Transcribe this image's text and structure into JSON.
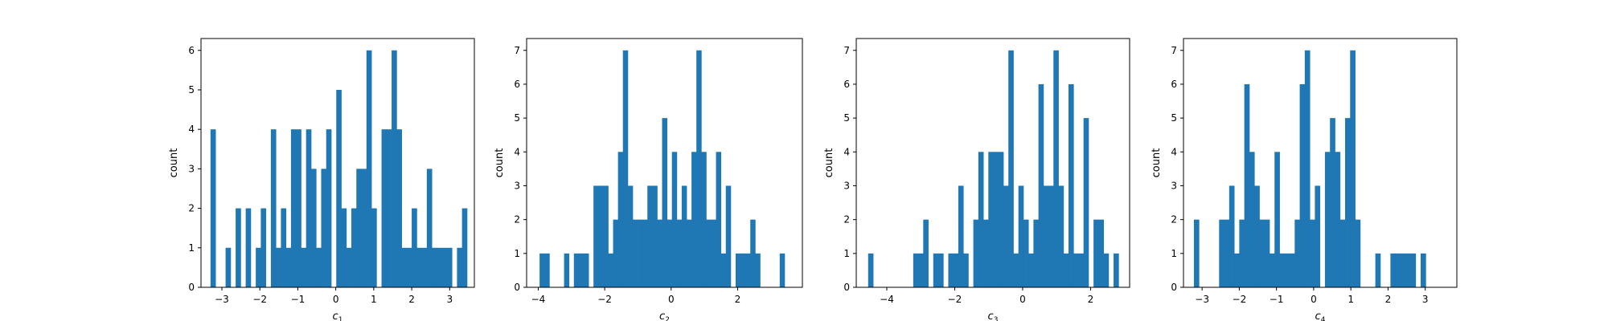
{
  "chart_data": [
    {
      "type": "bar",
      "xlabel": "c",
      "xlabel_sub": "1",
      "ylabel": "count",
      "xlim": [
        -3.55,
        3.65
      ],
      "ylim": [
        0,
        6.3
      ],
      "xticks": [
        -3,
        -2,
        -1,
        0,
        1,
        2,
        3
      ],
      "yticks": [
        0,
        1,
        2,
        3,
        4,
        5,
        6
      ],
      "xtick_labels": [
        "−3",
        "−2",
        "−1",
        "0",
        "1",
        "2",
        "3"
      ],
      "ytick_labels": [
        "0",
        "1",
        "2",
        "3",
        "4",
        "5",
        "6"
      ],
      "bin_start": -3.3,
      "bin_width": 0.1325,
      "values": [
        4,
        0,
        0,
        1,
        0,
        2,
        0,
        2,
        0,
        1,
        2,
        0,
        4,
        1,
        2,
        1,
        4,
        4,
        1,
        4,
        3,
        1,
        3,
        4,
        0,
        5,
        2,
        1,
        2,
        3,
        3,
        6,
        2,
        0,
        4,
        4,
        6,
        4,
        1,
        1,
        2,
        1,
        1,
        3,
        1,
        1,
        1,
        1,
        0,
        1,
        2
      ],
      "color": "#1f77b4"
    },
    {
      "type": "bar",
      "xlabel": "c",
      "xlabel_sub": "2",
      "ylabel": "count",
      "xlim": [
        -4.35,
        3.95
      ],
      "ylim": [
        0,
        7.35
      ],
      "xticks": [
        -4,
        -2,
        0,
        2
      ],
      "yticks": [
        0,
        1,
        2,
        3,
        4,
        5,
        6,
        7
      ],
      "xtick_labels": [
        "−4",
        "−2",
        "0",
        "2"
      ],
      "ytick_labels": [
        "0",
        "1",
        "2",
        "3",
        "4",
        "5",
        "6",
        "7"
      ],
      "bin_start": -3.96,
      "bin_width": 0.1475,
      "values": [
        1,
        1,
        0,
        0,
        0,
        1,
        0,
        1,
        1,
        1,
        0,
        3,
        3,
        3,
        1,
        2,
        4,
        7,
        3,
        2,
        2,
        2,
        3,
        3,
        2,
        5,
        2,
        4,
        2,
        3,
        2,
        4,
        7,
        4,
        2,
        2,
        4,
        1,
        3,
        0,
        1,
        1,
        1,
        2,
        1,
        0,
        0,
        0,
        0,
        1
      ],
      "color": "#1f77b4"
    },
    {
      "type": "bar",
      "xlabel": "c",
      "xlabel_sub": "3",
      "ylabel": "count",
      "xlim": [
        -4.9,
        3.15
      ],
      "ylim": [
        0,
        7.35
      ],
      "xticks": [
        -4,
        -2,
        0,
        2
      ],
      "yticks": [
        0,
        1,
        2,
        3,
        4,
        5,
        6,
        7
      ],
      "xtick_labels": [
        "−4",
        "−2",
        "0",
        "2"
      ],
      "ytick_labels": [
        "0",
        "1",
        "2",
        "3",
        "4",
        "5",
        "6",
        "7"
      ],
      "bin_start": -4.55,
      "bin_width": 0.1475,
      "values": [
        1,
        0,
        0,
        0,
        0,
        0,
        0,
        0,
        0,
        1,
        1,
        2,
        0,
        1,
        1,
        0,
        1,
        1,
        3,
        1,
        0,
        2,
        4,
        2,
        4,
        4,
        4,
        3,
        7,
        1,
        3,
        2,
        1,
        2,
        6,
        3,
        3,
        7,
        3,
        1,
        6,
        1,
        1,
        5,
        0,
        2,
        2,
        1,
        0,
        1
      ],
      "color": "#1f77b4"
    },
    {
      "type": "bar",
      "xlabel": "c",
      "xlabel_sub": "4",
      "ylabel": "count",
      "xlim": [
        -3.5,
        3.85
      ],
      "ylim": [
        0,
        7.35
      ],
      "xticks": [
        -3,
        -2,
        -1,
        0,
        1,
        2,
        3
      ],
      "yticks": [
        0,
        1,
        2,
        3,
        4,
        5,
        6,
        7
      ],
      "xtick_labels": [
        "−3",
        "−2",
        "−1",
        "0",
        "1",
        "2",
        "3"
      ],
      "ytick_labels": [
        "0",
        "1",
        "2",
        "3",
        "4",
        "5",
        "6",
        "7"
      ],
      "bin_start": -3.22,
      "bin_width": 0.1355,
      "values": [
        2,
        0,
        0,
        0,
        0,
        2,
        2,
        3,
        1,
        2,
        6,
        4,
        3,
        2,
        2,
        1,
        4,
        1,
        1,
        1,
        2,
        6,
        7,
        2,
        3,
        0,
        4,
        5,
        4,
        2,
        5,
        7,
        2,
        0,
        0,
        0,
        1,
        0,
        0,
        1,
        1,
        1,
        1,
        1,
        0,
        1
      ],
      "color": "#1f77b4"
    }
  ]
}
